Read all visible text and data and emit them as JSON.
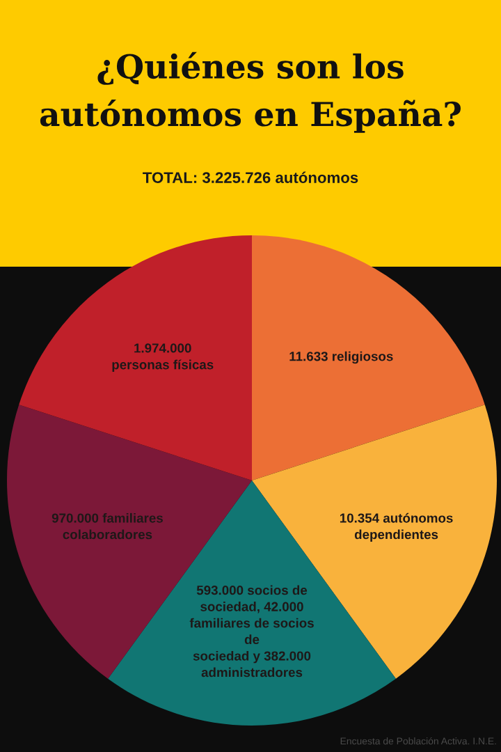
{
  "chart_data": {
    "type": "pie",
    "title": "¿Quiénes son los\nautónomos en España?",
    "subtitle": "TOTAL: 3.225.726 autónomos",
    "categories": [
      "11.633 religiosos",
      "10.354 autónomos\ndependientes",
      "593.000 socios de\nsociedad, 42.000\nfamiliares de socios\nde\nsociedad y 382.000\nadministradores",
      "970.000 familiares\ncolaboradores",
      "1.974.000\npersonas físicas"
    ],
    "values": [
      20,
      20,
      20,
      20,
      20
    ],
    "colors": [
      "#ec6f35",
      "#f9b23c",
      "#117673",
      "#7c1838",
      "#c0202a"
    ],
    "annotations": [
      "Encuesta de Población Activa. I.N.E."
    ]
  }
}
